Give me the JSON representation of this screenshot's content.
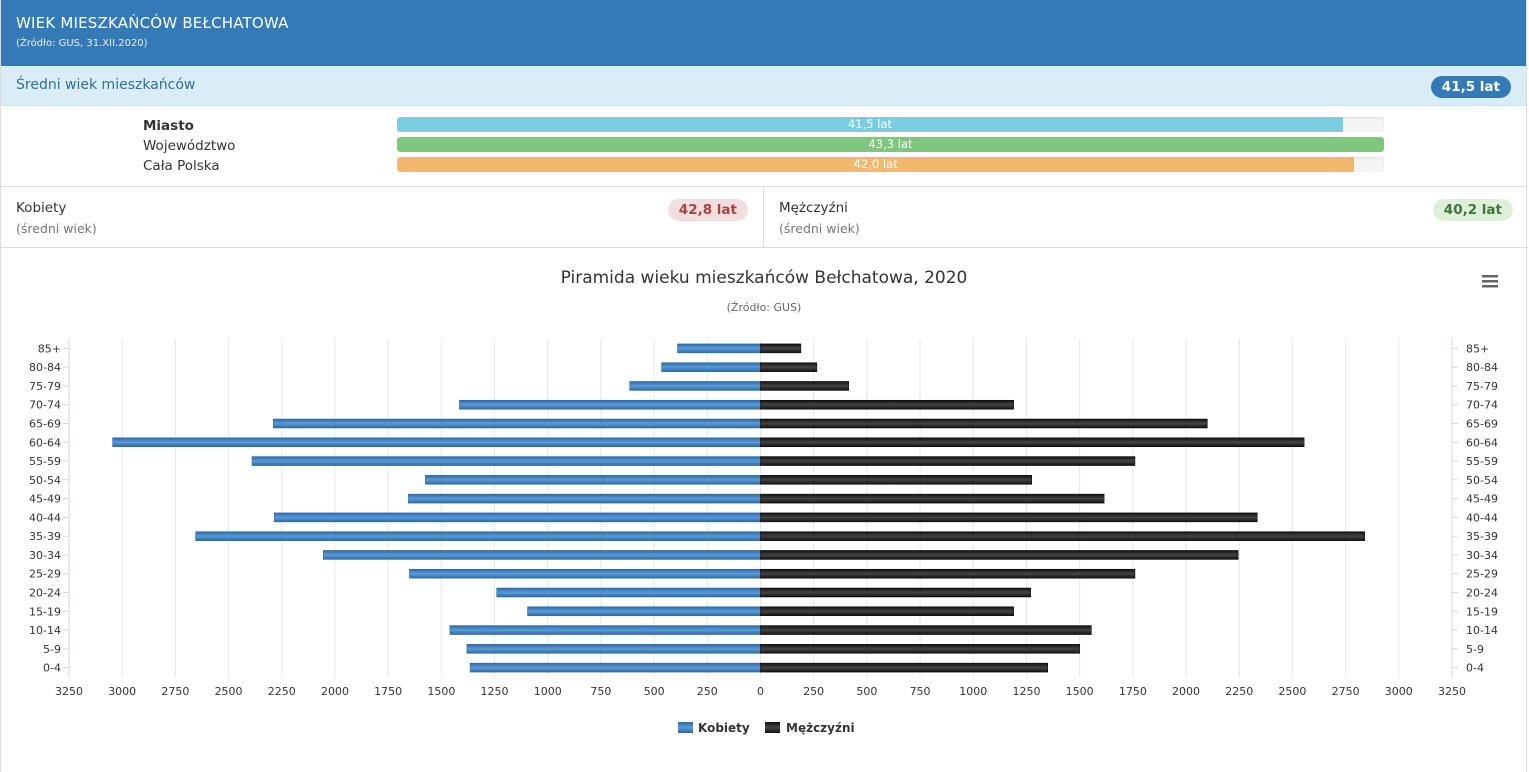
{
  "header": {
    "title": "WIEK MIESZKAŃCÓW BEŁCHATOWA",
    "source": "(Źródło: GUS, 31.XII.2020)"
  },
  "average": {
    "label": "Średni wiek mieszkańców",
    "value": "41,5 lat"
  },
  "comparison": {
    "scale_max": 43.3,
    "items": [
      {
        "label": "Miasto",
        "value_text": "41,5 lat",
        "value": 41.5,
        "color": "#7accdf"
      },
      {
        "label": "Województwo",
        "value_text": "43,3 lat",
        "value": 43.3,
        "color": "#7fc77f"
      },
      {
        "label": "Cała Polska",
        "value_text": "42,0 lat",
        "value": 42.0,
        "color": "#f0b96b"
      }
    ]
  },
  "gender": {
    "women": {
      "title": "Kobiety",
      "subtitle": "(średni wiek)",
      "value": "42,8 lat"
    },
    "men": {
      "title": "Mężczyźni",
      "subtitle": "(średni wiek)",
      "value": "40,2 lat"
    }
  },
  "chart_data": {
    "type": "bar",
    "title": "Piramida wieku mieszkańców Bełchatowa, 2020",
    "subtitle": "(Źródło: GUS)",
    "categories": [
      "85+",
      "80-84",
      "75-79",
      "70-74",
      "65-69",
      "60-64",
      "55-59",
      "50-54",
      "45-49",
      "40-44",
      "35-39",
      "30-34",
      "25-29",
      "20-24",
      "15-19",
      "10-14",
      "5-9",
      "0-4"
    ],
    "series": [
      {
        "name": "Kobiety",
        "color": "#3d7ec4",
        "values": [
          390,
          465,
          615,
          1415,
          2290,
          3045,
          2390,
          1575,
          1655,
          2285,
          2655,
          2055,
          1650,
          1240,
          1095,
          1460,
          1380,
          1365
        ]
      },
      {
        "name": "Mężczyźni",
        "color": "#222222",
        "values": [
          190,
          265,
          415,
          1190,
          2100,
          2555,
          1760,
          1275,
          1615,
          2335,
          2840,
          2245,
          1760,
          1270,
          1190,
          1555,
          1500,
          1350
        ]
      }
    ],
    "xlim": [
      -3250,
      3250
    ],
    "x_ticks": [
      3250,
      3000,
      2750,
      2500,
      2250,
      2000,
      1750,
      1500,
      1250,
      1000,
      750,
      500,
      250,
      0,
      250,
      500,
      750,
      1000,
      1250,
      1500,
      1750,
      2000,
      2250,
      2500,
      2750,
      3000,
      3250
    ],
    "grid": true,
    "legend": "bottom-center"
  },
  "icons": {
    "menu": "menu-icon"
  }
}
